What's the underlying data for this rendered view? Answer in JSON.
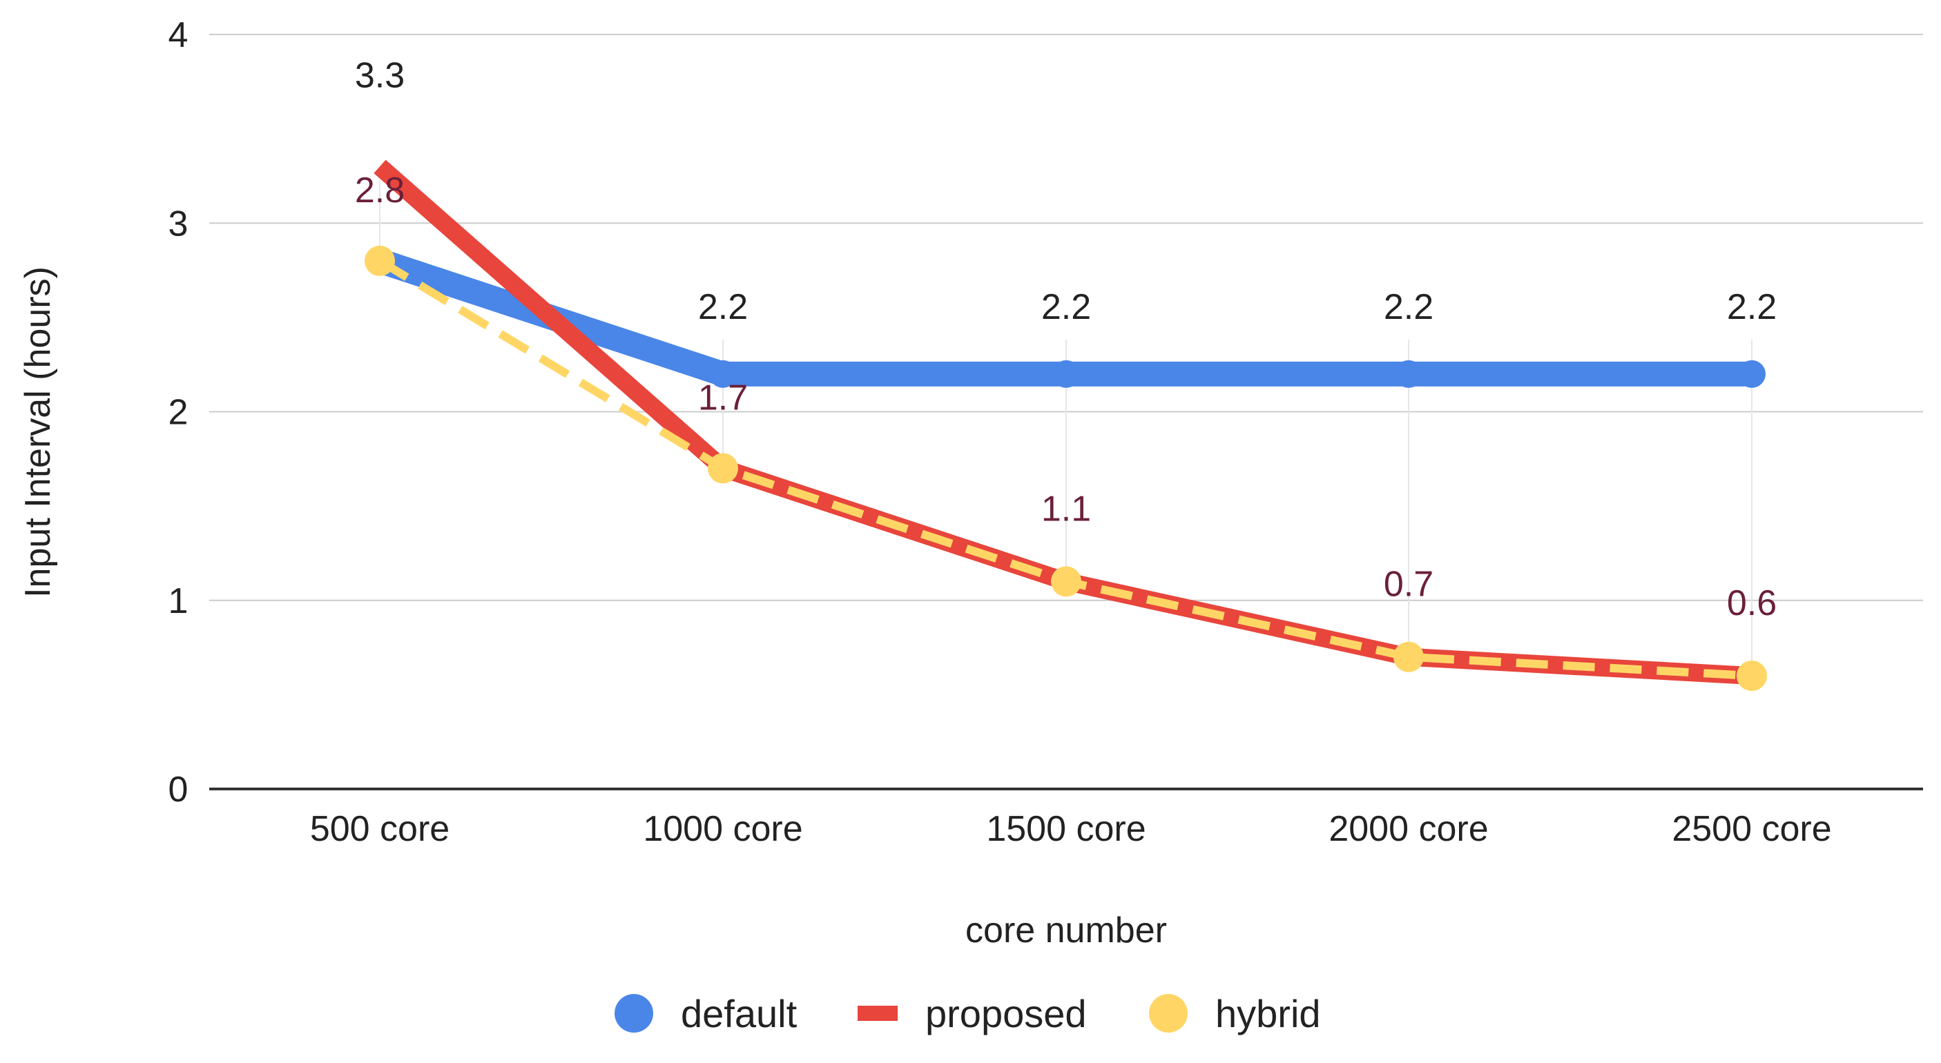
{
  "chart_data": {
    "type": "line",
    "title": "",
    "xlabel": "core number",
    "ylabel": "Input Interval (hours)",
    "categories": [
      "500 core",
      "1000 core",
      "1500 core",
      "2000 core",
      "2500 core"
    ],
    "ylim": [
      0,
      4
    ],
    "yticks": [
      "0",
      "1",
      "2",
      "3",
      "4"
    ],
    "grid": true,
    "legend_position": "bottom",
    "series": [
      {
        "name": "default",
        "values": [
          2.8,
          2.2,
          2.2,
          2.2,
          2.2
        ],
        "labels": [
          "",
          "2.2",
          "2.2",
          "2.2",
          "2.2"
        ],
        "color": "#4a86e8",
        "label_color": "#222222",
        "style": "solid",
        "marker": true
      },
      {
        "name": "proposed",
        "values": [
          3.3,
          1.7,
          1.1,
          0.7,
          0.6
        ],
        "labels": [
          "3.3",
          "",
          "",
          "",
          ""
        ],
        "color": "#e8453c",
        "label_color": "#222222",
        "style": "solid",
        "marker": false
      },
      {
        "name": "hybrid",
        "values": [
          2.8,
          1.7,
          1.1,
          0.7,
          0.6
        ],
        "labels": [
          "2.8",
          "1.7",
          "1.1",
          "0.7",
          "0.6"
        ],
        "color": "#ffd666",
        "label_color": "#6b1f3a",
        "style": "dashed",
        "marker": true
      }
    ]
  }
}
